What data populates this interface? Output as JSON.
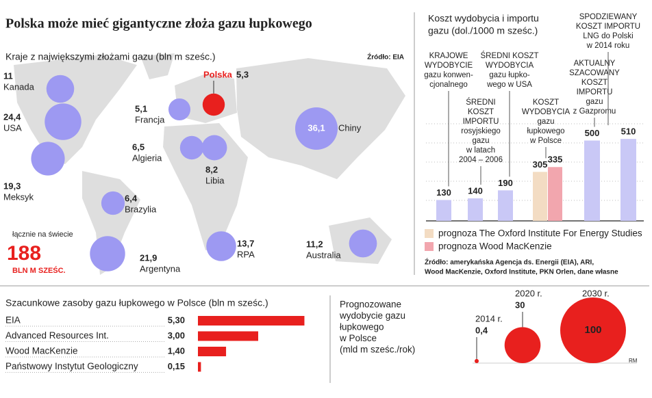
{
  "title": "Polska może mieć gigantyczne złoża gazu łupkowego",
  "credit": "RM",
  "chart_data": [
    {
      "type": "bubble-map",
      "title": "Kraje z największymi złożami gazu (bln m sześc.)",
      "source": "Źródło: EIA",
      "categories": [
        "Kanada",
        "USA",
        "Meksyk",
        "Polska",
        "Francja",
        "Algieria",
        "Libia",
        "Brazylia",
        "Argentyna",
        "RPA",
        "Chiny",
        "Australia"
      ],
      "values": [
        11,
        24.4,
        19.3,
        5.3,
        5.1,
        6.5,
        8.2,
        6.4,
        21.9,
        13.7,
        36.1,
        11.2
      ],
      "value_labels": [
        "11",
        "24,4",
        "19,3",
        "5,3",
        "5,1",
        "6,5",
        "8,2",
        "6,4",
        "21,9",
        "13,7",
        "36,1",
        "11,2"
      ],
      "colors": [
        "#9d99f2",
        "#9d99f2",
        "#9d99f2",
        "#e8201e",
        "#9d99f2",
        "#9d99f2",
        "#9d99f2",
        "#9d99f2",
        "#9d99f2",
        "#9d99f2",
        "#9d99f2",
        "#9d99f2"
      ],
      "total_label": "łącznie na świecie",
      "total": 188,
      "total_unit": "BLN M SZEŚC."
    },
    {
      "type": "bar",
      "title": [
        "Koszt wydobycia i importu",
        "gazu (dol./1000 m sześc.)"
      ],
      "categories": [
        [
          "KRAJOWE",
          "WYDOBYCIE",
          "gazu konwen-",
          "cjonalnego"
        ],
        [
          "ŚREDNI",
          "KOSZT",
          "IMPORTU",
          "rosyjskiego",
          "gazu",
          "w latach",
          "2004 – 2006"
        ],
        [
          "ŚREDNI KOSZT",
          "WYDOBYCIA",
          "gazu łupko-",
          "wego w USA"
        ],
        [
          "KOSZT",
          "WYDOBYCIA",
          "gazu",
          "łupkowego",
          "w Polsce"
        ],
        null,
        [
          "AKTUALNY",
          "SZACOWANY",
          "KOSZT",
          "IMPORTU",
          "gazu",
          "z Gazpromu"
        ],
        [
          "SPODZIEWANY",
          "KOSZT IMPORTU",
          "LNG do Polski",
          "w 2014 roku"
        ]
      ],
      "values": [
        130,
        140,
        190,
        305,
        335,
        500,
        510
      ],
      "colors": [
        "#c9c8f6",
        "#c9c8f6",
        "#c9c8f6",
        "#f3dcc3",
        "#f2a6ae",
        "#c9c8f6",
        "#c9c8f6"
      ],
      "ylim": [
        0,
        600
      ],
      "legend": [
        {
          "name": "prognoza The Oxford Institute For Energy Studies",
          "color": "#f3dcc3"
        },
        {
          "name": "prognoza Wood MacKenzie",
          "color": "#f2a6ae"
        }
      ],
      "source": [
        "Źródło: amerykańska Agencja ds. Energii (EIA), ARI,",
        "Wood MacKenzie, Oxford Institute, PKN Orlen, dane własne"
      ]
    },
    {
      "type": "hbar",
      "title": "Szacunkowe zasoby gazu łupkowego w Polsce (bln m sześc.)",
      "categories": [
        "EIA",
        "Advanced Resources Int.",
        "Wood MacKenzie",
        "Państwowy Instytut Geologiczny"
      ],
      "values": [
        5.3,
        3.0,
        1.4,
        0.15
      ],
      "value_labels": [
        "5,30",
        "3,00",
        "1,40",
        "0,15"
      ],
      "color": "#e8201e",
      "xlim": [
        0,
        6
      ]
    },
    {
      "type": "bubble",
      "title": [
        "Prognozowane",
        "wydobycie gazu",
        "łupkowego",
        "w Polsce",
        "(mld m sześc./rok)"
      ],
      "categories": [
        "2014 r.",
        "2020 r.",
        "2030 r."
      ],
      "values": [
        0.4,
        30,
        100
      ],
      "value_labels": [
        "0,4",
        "30",
        "100"
      ],
      "color": "#e8201e"
    }
  ]
}
